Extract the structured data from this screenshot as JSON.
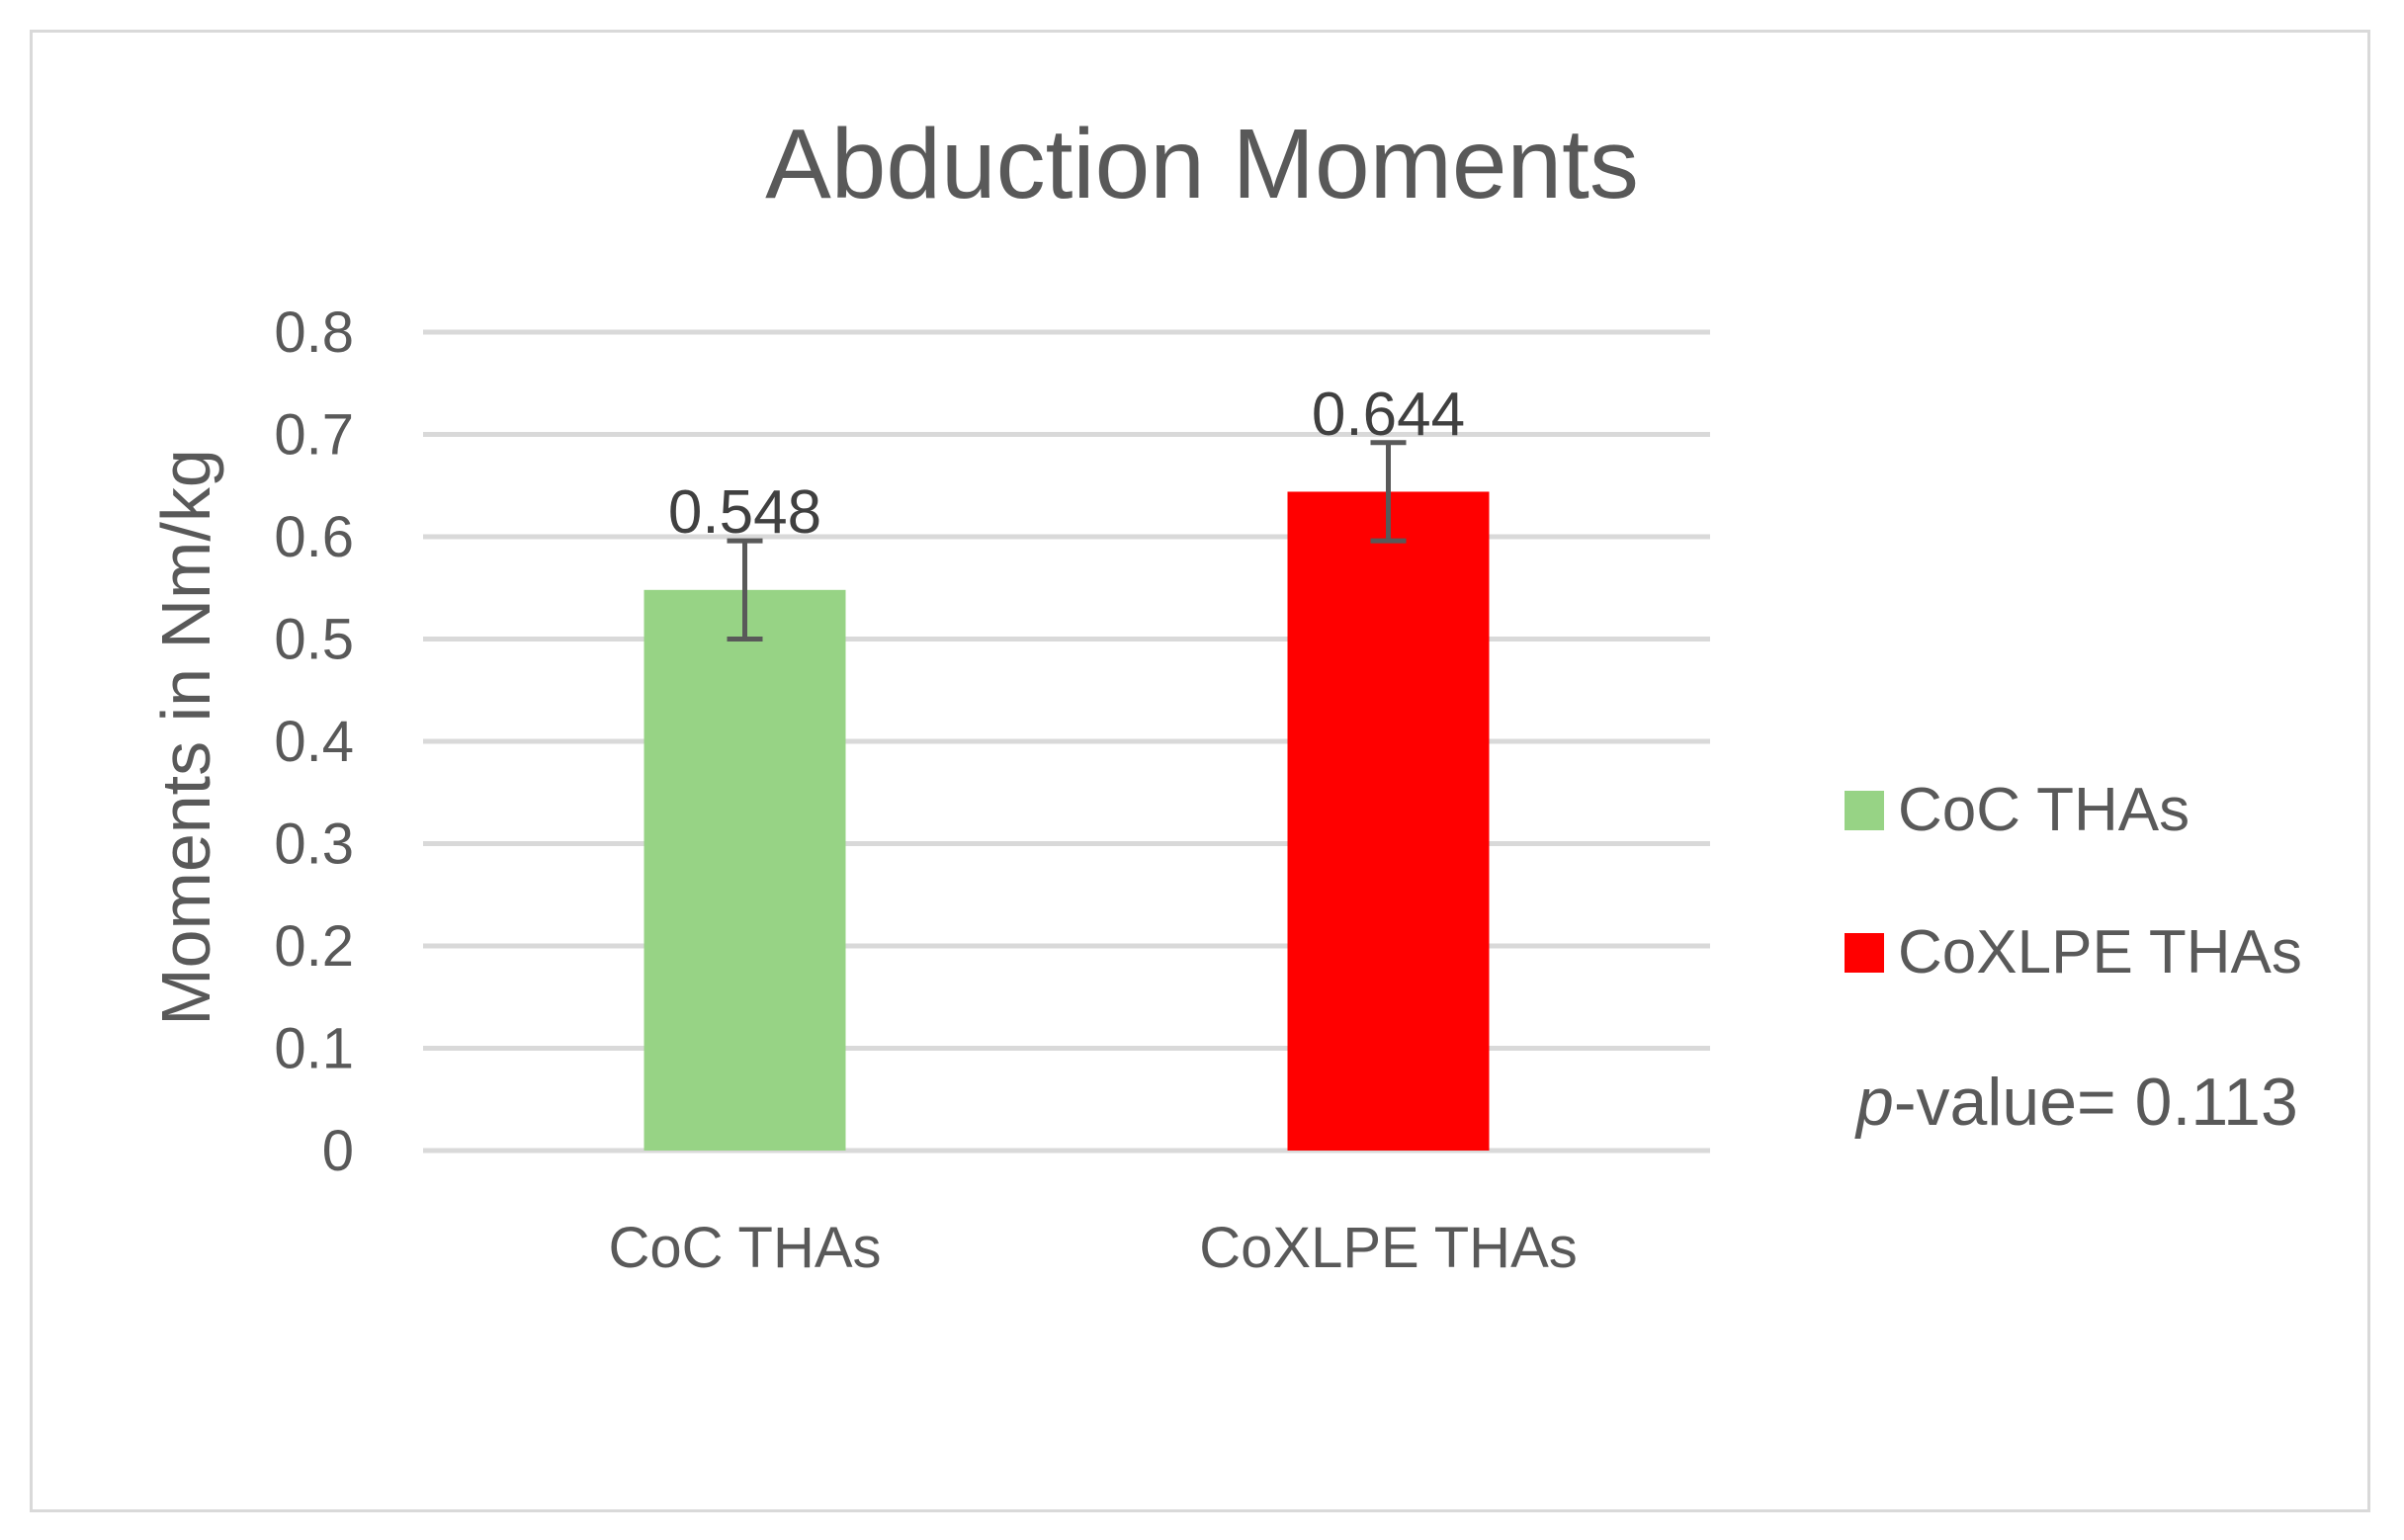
{
  "chart_data": {
    "type": "bar",
    "title": "Abduction Moments",
    "xlabel": "",
    "ylabel": "Moments in Nm/kg",
    "categories": [
      "CoC THAs",
      "CoXLPE THAs"
    ],
    "values": [
      0.548,
      0.644
    ],
    "data_labels": [
      "0.548",
      "0.644"
    ],
    "error_low": [
      0.5,
      0.596
    ],
    "error_high": [
      0.596,
      0.692
    ],
    "colors": [
      "#97d385",
      "#ff0000"
    ],
    "ylim": [
      0,
      0.8
    ],
    "yticks": [
      "0",
      "0.1",
      "0.2",
      "0.3",
      "0.4",
      "0.5",
      "0.6",
      "0.7",
      "0.8"
    ],
    "grid": true,
    "legend": {
      "placement": "right",
      "entries": [
        "CoC THAs",
        "CoXLPE THAs"
      ]
    },
    "annotation": {
      "italic_part": "p",
      "rest": "-value= 0.113"
    }
  },
  "colors": {
    "gridline": "#d9d9d9",
    "errorbar": "#595959",
    "text": "#595959"
  }
}
